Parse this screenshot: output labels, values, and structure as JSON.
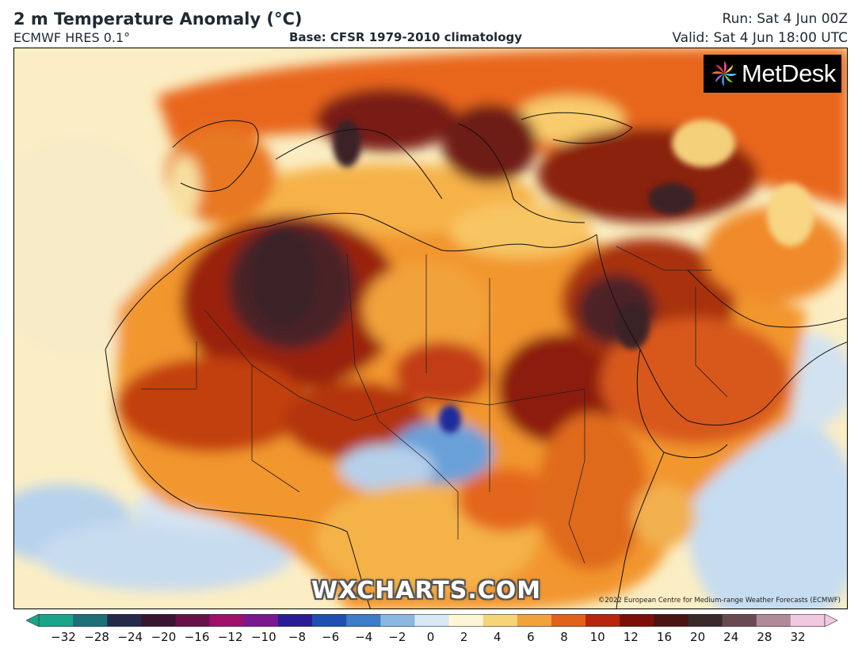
{
  "header": {
    "title": "2 m Temperature Anomaly (°C)",
    "model": "ECMWF HRES 0.1°",
    "base": "Base: CFSR 1979-2010 climatology",
    "run": "Run: Sat 4 Jun 00Z",
    "valid": "Valid: Sat 4 Jun 18:00 UTC"
  },
  "logo": {
    "text": "MetDesk",
    "icon": "pinwheel-logo-icon"
  },
  "watermark": "WXCHARTS.COM",
  "copyright": "©2022 European Centre for Medium-range Weather Forecasts (ECMWF)",
  "colorbar": {
    "ticks": [
      "−32",
      "−28",
      "−24",
      "−20",
      "−16",
      "−12",
      "−10",
      "−8",
      "−6",
      "−4",
      "−2",
      "0",
      "2",
      "4",
      "6",
      "8",
      "10",
      "12",
      "16",
      "20",
      "24",
      "28",
      "32"
    ],
    "colors": [
      "#1aa58a",
      "#1d6f7a",
      "#252a4a",
      "#3a1530",
      "#6a1048",
      "#a0106a",
      "#7a1890",
      "#2a1c96",
      "#1f4fb0",
      "#3c7cc8",
      "#8ab8e0",
      "#d8e8f4",
      "#fff6d8",
      "#f6d478",
      "#f2a23a",
      "#e2621a",
      "#b8240e",
      "#7e0e08",
      "#4a1410",
      "#3a2a2a",
      "#6a4a52",
      "#b08a98",
      "#f0c8e0"
    ]
  },
  "colors": {
    "very_hot": "#3a2428",
    "hot": "#8a1a0c",
    "warm": "#d44a12",
    "mild": "#f08a26",
    "slight": "#f6c05a",
    "neutral": "#fbe7b0",
    "cool": "#c6dcf0",
    "cold": "#2a5cc8",
    "ocean": "#d8e8f2"
  }
}
